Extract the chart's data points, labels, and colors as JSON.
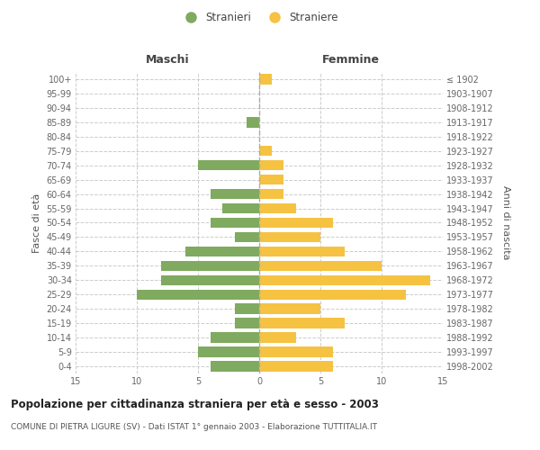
{
  "age_groups": [
    "0-4",
    "5-9",
    "10-14",
    "15-19",
    "20-24",
    "25-29",
    "30-34",
    "35-39",
    "40-44",
    "45-49",
    "50-54",
    "55-59",
    "60-64",
    "65-69",
    "70-74",
    "75-79",
    "80-84",
    "85-89",
    "90-94",
    "95-99",
    "100+"
  ],
  "birth_years": [
    "1998-2002",
    "1993-1997",
    "1988-1992",
    "1983-1987",
    "1978-1982",
    "1973-1977",
    "1968-1972",
    "1963-1967",
    "1958-1962",
    "1953-1957",
    "1948-1952",
    "1943-1947",
    "1938-1942",
    "1933-1937",
    "1928-1932",
    "1923-1927",
    "1918-1922",
    "1913-1917",
    "1908-1912",
    "1903-1907",
    "≤ 1902"
  ],
  "maschi": [
    4,
    5,
    4,
    2,
    2,
    10,
    8,
    8,
    6,
    2,
    4,
    3,
    4,
    0,
    5,
    0,
    0,
    1,
    0,
    0,
    0
  ],
  "femmine": [
    6,
    6,
    3,
    7,
    5,
    12,
    14,
    10,
    7,
    5,
    6,
    3,
    2,
    2,
    2,
    1,
    0,
    0,
    0,
    0,
    1
  ],
  "color_maschi": "#7faa5f",
  "color_femmine": "#f5c242",
  "title": "Popolazione per cittadinanza straniera per età e sesso - 2003",
  "subtitle": "COMUNE DI PIETRA LIGURE (SV) - Dati ISTAT 1° gennaio 2003 - Elaborazione TUTTITALIA.IT",
  "ylabel_left": "Fasce di età",
  "ylabel_right": "Anni di nascita",
  "label_maschi": "Maschi",
  "label_femmine": "Femmine",
  "xlim": 15,
  "legend_stranieri": "Stranieri",
  "legend_straniere": "Straniere",
  "background_color": "#ffffff",
  "grid_color": "#cccccc"
}
